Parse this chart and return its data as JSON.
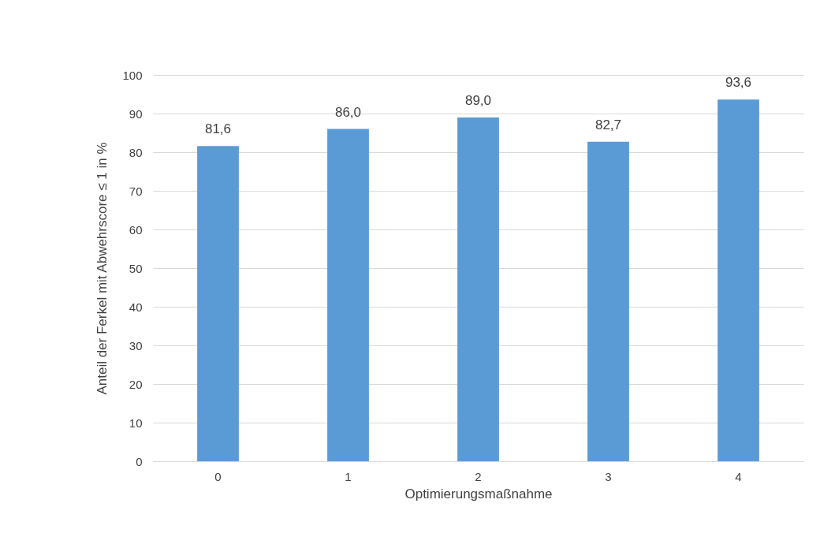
{
  "chart_data": {
    "type": "bar",
    "xlabel": "Optimierungsmaßnahme",
    "ylabel": "Anteil der Ferkel mit  Abwehrscore ≤ 1 in %",
    "categories": [
      "0",
      "1",
      "2",
      "3",
      "4"
    ],
    "values": [
      81.6,
      86.0,
      89.0,
      82.7,
      93.6
    ],
    "value_labels": [
      "81,6",
      "86,0",
      "89,0",
      "82,7",
      "93,6"
    ],
    "color": "#5b9bd5",
    "ylim": [
      0,
      100
    ],
    "yticks": [
      0,
      10,
      20,
      30,
      40,
      50,
      60,
      70,
      80,
      90,
      100
    ],
    "grid": "y"
  }
}
